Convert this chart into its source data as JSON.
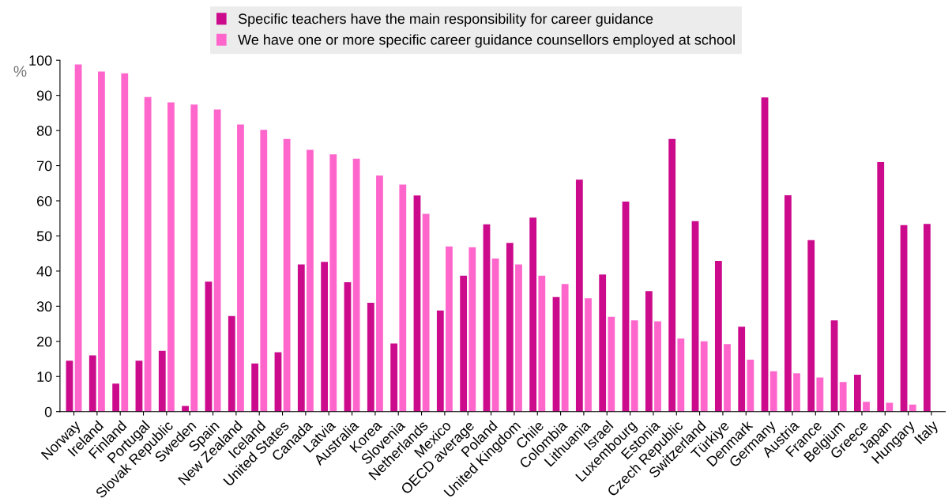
{
  "chart_data": {
    "type": "bar",
    "ylabel": "%",
    "legend": "top",
    "categories": [
      "Norway",
      "Ireland",
      "Finland",
      "Portugal",
      "Slovak Republic",
      "Sweden",
      "Spain",
      "New Zealand",
      "Iceland",
      "United States",
      "Canada",
      "Latvia",
      "Australia",
      "Korea",
      "Slovenia",
      "Netherlands",
      "Mexico",
      "OECD average",
      "Poland",
      "United Kingdom",
      "Chile",
      "Colombia",
      "Lithuania",
      "Israel",
      "Luxembourg",
      "Estonia",
      "Czech Republic",
      "Switzerland",
      "Türkiye",
      "Denmark",
      "Germany",
      "Austria",
      "France",
      "Belgium",
      "Greece",
      "Japan",
      "Hungary",
      "Italy"
    ],
    "series": [
      {
        "name": "Specific teachers have the main responsibility for career guidance",
        "color": "#cc0a8c",
        "values": [
          14.5,
          16,
          8,
          14.5,
          17.3,
          1.6,
          37,
          27.2,
          13.7,
          16.9,
          41.9,
          42.6,
          36.8,
          31,
          19.4,
          61.5,
          28.8,
          38.7,
          53.3,
          48,
          55.2,
          32.6,
          66,
          39,
          59.8,
          34.3,
          77.6,
          54.2,
          42.9,
          24.2,
          89.4,
          61.6,
          48.8,
          26,
          10.5,
          71,
          53.1,
          53.4
        ]
      },
      {
        "name": "We have one or more specific career guidance counsellors employed at school",
        "color": "#ff66cc",
        "values": [
          98.8,
          96.8,
          96.3,
          89.5,
          88,
          87.4,
          86,
          81.7,
          80.2,
          77.6,
          74.5,
          73.2,
          72,
          67.2,
          64.6,
          56.3,
          47,
          46.8,
          43.6,
          41.9,
          38.7,
          36.3,
          32.3,
          27,
          26,
          25.7,
          20.8,
          20,
          19.2,
          14.8,
          11.5,
          10.9,
          9.7,
          8.4,
          2.8,
          2.5,
          2,
          null
        ]
      }
    ],
    "ylim": [
      0,
      100
    ],
    "yticks": [
      0,
      10,
      20,
      30,
      40,
      50,
      60,
      70,
      80,
      90,
      100
    ],
    "grid": false
  }
}
